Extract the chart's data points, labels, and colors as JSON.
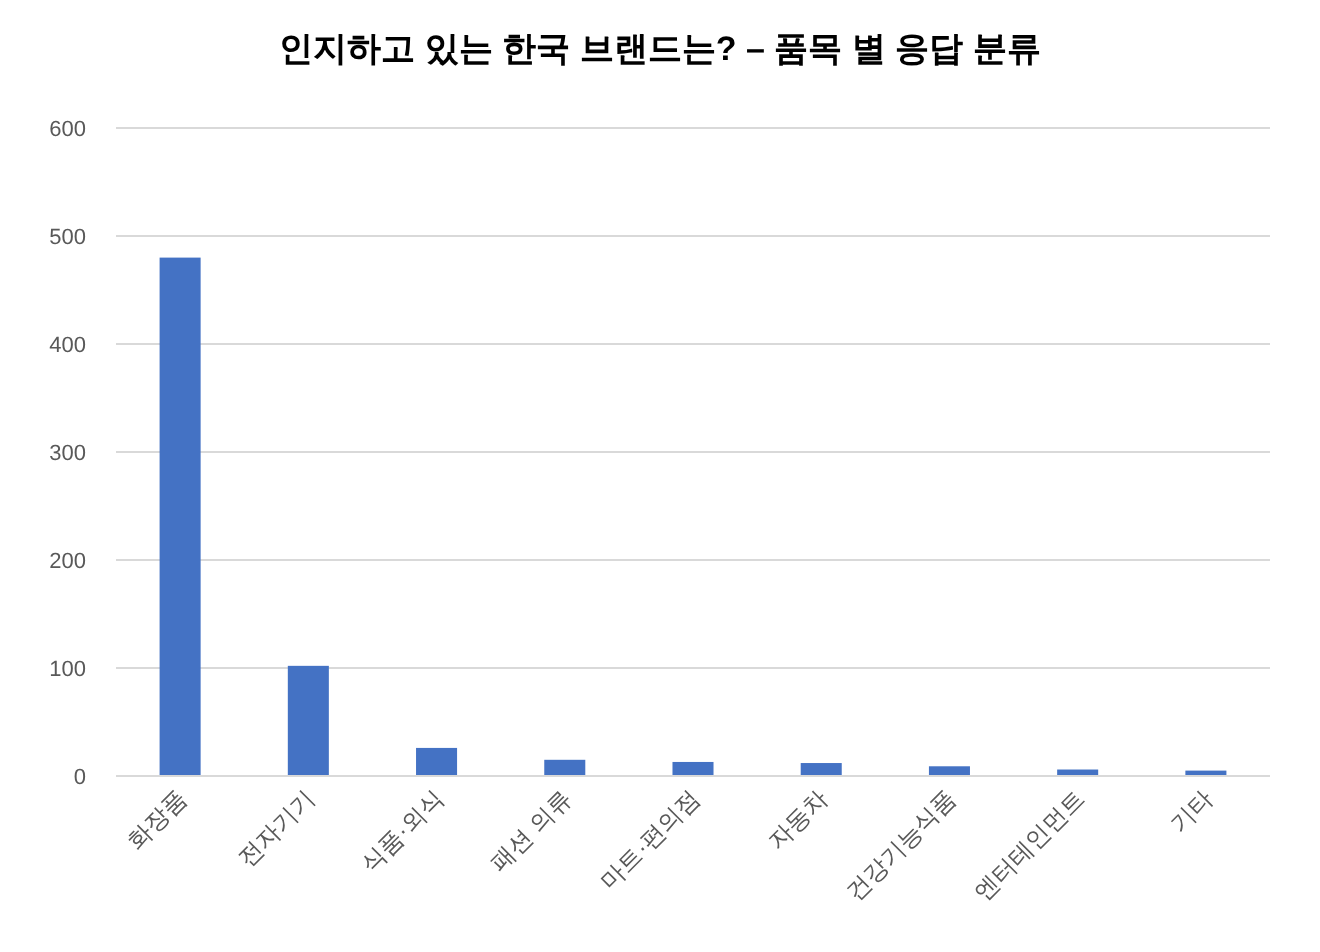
{
  "chart_data": {
    "type": "bar",
    "title": "인지하고 있는 한국 브랜드는? – 품목 별 응답 분류",
    "categories": [
      "화장품",
      "전자기기",
      "식품·외식",
      "패션 의류",
      "마트·편의점",
      "자동차",
      "건강기능식품",
      "엔터테인먼트",
      "기타"
    ],
    "values": [
      480,
      102,
      26,
      15,
      13,
      12,
      9,
      6,
      5
    ],
    "color": "#4472c4",
    "ylim": [
      0,
      600
    ],
    "yticks": [
      0,
      100,
      200,
      300,
      400,
      500,
      600
    ],
    "grid": "y"
  }
}
